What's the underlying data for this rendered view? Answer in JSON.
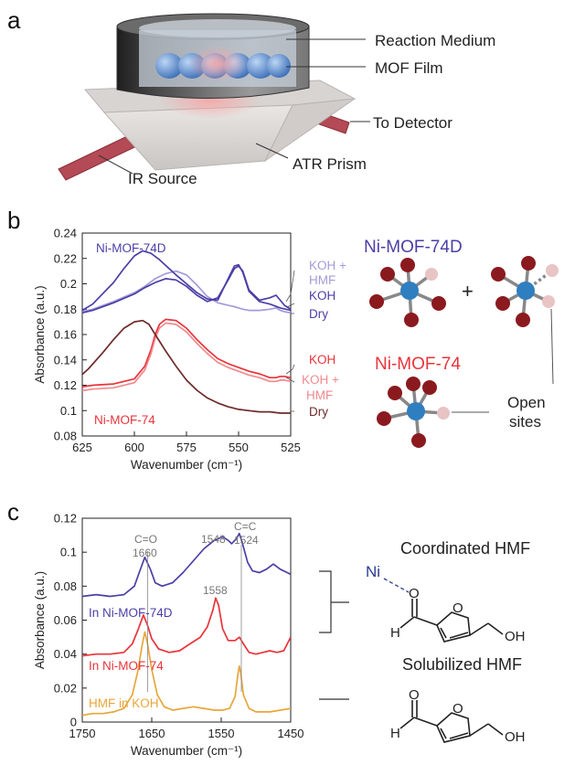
{
  "panel_a": {
    "letter": "a",
    "callouts": [
      "Reaction Medium",
      "MOF Film",
      "To Detector",
      "IR Source",
      "ATR Prism"
    ]
  },
  "panel_b": {
    "letter": "b",
    "struct_title_d": "Ni-MOF-74D",
    "struct_title": "Ni-MOF-74",
    "plus": "+",
    "open_sites": [
      "Open",
      "sites"
    ],
    "colors": {
      "blue": "#4b3fa6",
      "blue_light": "#a49bd8",
      "red": "#e8343a",
      "red_light": "#f08a8e",
      "dark": "#6e2a2a",
      "atom_center": "#2f7fc0",
      "atom_o": "#8b1a1f",
      "atom_open": "#e8c4c4"
    }
  },
  "panel_c": {
    "letter": "c",
    "mol_title_1": "Coordinated HMF",
    "mol_title_2": "Solubilized HMF",
    "ni_label": "Ni",
    "atoms": {
      "o": "O",
      "h": "H",
      "oh": "OH"
    }
  },
  "chart_data": [
    {
      "type": "line",
      "xlabel": "Wavenumber (cm⁻¹)",
      "ylabel": "Absorbance (a.u.)",
      "xlim": [
        625,
        525
      ],
      "ylim": [
        0.08,
        0.24
      ],
      "x_reversed": true,
      "xticks": [
        625,
        600,
        575,
        550,
        525
      ],
      "yticks": [
        0.08,
        0.1,
        0.12,
        0.14,
        0.16,
        0.18,
        0.2,
        0.22,
        0.24
      ],
      "ytick_labels": [
        "0.08",
        "0.1",
        "0.12",
        "0.14",
        "0.16",
        "0.18",
        "0.2",
        "0.22",
        "0.24"
      ],
      "group_labels": [
        "Ni-MOF-74D",
        "Ni-MOF-74"
      ],
      "series": [
        {
          "name": "KOH + HMF",
          "group": "Ni-MOF-74D",
          "color": "#a49bd8",
          "x": [
            628,
            620,
            610,
            600,
            595,
            590,
            585,
            580,
            575,
            570,
            565,
            560,
            555,
            552,
            550,
            548,
            545,
            540,
            535,
            532,
            530,
            528,
            525
          ],
          "y": [
            0.177,
            0.18,
            0.186,
            0.193,
            0.198,
            0.204,
            0.208,
            0.21,
            0.207,
            0.199,
            0.19,
            0.185,
            0.183,
            0.182,
            0.181,
            0.18,
            0.179,
            0.179,
            0.18,
            0.181,
            0.179,
            0.178,
            0.177
          ]
        },
        {
          "name": "KOH",
          "group": "Ni-MOF-74D",
          "color": "#4b3fa6",
          "x": [
            628,
            620,
            610,
            600,
            595,
            590,
            585,
            580,
            575,
            570,
            565,
            560,
            555,
            552,
            550,
            548,
            545,
            540,
            535,
            532,
            530,
            528,
            525
          ],
          "y": [
            0.176,
            0.179,
            0.185,
            0.192,
            0.197,
            0.201,
            0.204,
            0.203,
            0.198,
            0.191,
            0.186,
            0.189,
            0.203,
            0.212,
            0.214,
            0.21,
            0.195,
            0.187,
            0.189,
            0.191,
            0.187,
            0.183,
            0.18
          ]
        },
        {
          "name": "Dry",
          "group": "Ni-MOF-74D",
          "color": "#4b3fa6",
          "x": [
            628,
            620,
            610,
            605,
            600,
            596,
            592,
            588,
            584,
            580,
            575,
            570,
            565,
            560,
            555,
            552,
            550,
            548,
            545,
            540,
            535,
            530,
            525
          ],
          "y": [
            0.176,
            0.184,
            0.201,
            0.212,
            0.222,
            0.226,
            0.224,
            0.219,
            0.213,
            0.207,
            0.2,
            0.193,
            0.188,
            0.187,
            0.204,
            0.214,
            0.215,
            0.209,
            0.194,
            0.186,
            0.184,
            0.181,
            0.179
          ]
        },
        {
          "name": "KOH",
          "group": "Ni-MOF-74",
          "color": "#e8343a",
          "x": [
            628,
            620,
            610,
            600,
            595,
            592,
            590,
            588,
            585,
            580,
            575,
            570,
            565,
            560,
            555,
            550,
            545,
            540,
            535,
            532,
            530,
            528,
            525
          ],
          "y": [
            0.118,
            0.12,
            0.121,
            0.125,
            0.135,
            0.148,
            0.16,
            0.168,
            0.172,
            0.171,
            0.165,
            0.156,
            0.148,
            0.141,
            0.137,
            0.134,
            0.131,
            0.129,
            0.126,
            0.126,
            0.127,
            0.127,
            0.126
          ]
        },
        {
          "name": "KOH + HMF",
          "group": "Ni-MOF-74",
          "color": "#f08a8e",
          "x": [
            628,
            620,
            610,
            600,
            595,
            592,
            590,
            588,
            585,
            580,
            575,
            570,
            565,
            560,
            555,
            550,
            545,
            540,
            535,
            532,
            530,
            528,
            525
          ],
          "y": [
            0.115,
            0.117,
            0.118,
            0.122,
            0.132,
            0.145,
            0.157,
            0.165,
            0.169,
            0.168,
            0.162,
            0.153,
            0.145,
            0.138,
            0.134,
            0.131,
            0.128,
            0.126,
            0.123,
            0.123,
            0.124,
            0.124,
            0.123
          ]
        },
        {
          "name": "Dry",
          "group": "Ni-MOF-74",
          "color": "#6e2a2a",
          "x": [
            628,
            622,
            615,
            610,
            605,
            600,
            596,
            593,
            590,
            585,
            580,
            575,
            570,
            565,
            560,
            555,
            550,
            545,
            540,
            535,
            530,
            525
          ],
          "y": [
            0.124,
            0.133,
            0.146,
            0.156,
            0.165,
            0.17,
            0.171,
            0.168,
            0.16,
            0.147,
            0.135,
            0.124,
            0.116,
            0.11,
            0.106,
            0.103,
            0.101,
            0.1,
            0.099,
            0.099,
            0.098,
            0.098
          ]
        }
      ]
    },
    {
      "type": "line",
      "xlabel": "Wavenumber (cm⁻¹)",
      "ylabel": "Absorbance (a.u.)",
      "xlim": [
        1750,
        1450
      ],
      "ylim": [
        0,
        0.12
      ],
      "x_reversed": true,
      "xticks": [
        1750,
        1650,
        1550,
        1450
      ],
      "yticks": [
        0,
        0.02,
        0.04,
        0.06,
        0.08,
        0.1,
        0.12
      ],
      "ytick_labels": [
        "0",
        "0.02",
        "0.04",
        "0.06",
        "0.08",
        "0.1",
        "0.12"
      ],
      "annotations": [
        {
          "text": "C=O",
          "x": 1660
        },
        {
          "text": "1660",
          "x": 1660
        },
        {
          "text": "C=C",
          "x": 1524
        },
        {
          "text": "1524",
          "x": 1524
        },
        {
          "text": "1548",
          "x": 1548
        },
        {
          "text": "1558",
          "x": 1558
        }
      ],
      "series": [
        {
          "name": "In Ni-MOF-74D",
          "color": "#4b3fa6",
          "x": [
            1750,
            1730,
            1710,
            1690,
            1675,
            1668,
            1660,
            1652,
            1645,
            1635,
            1620,
            1605,
            1590,
            1575,
            1560,
            1548,
            1540,
            1535,
            1528,
            1524,
            1520,
            1512,
            1505,
            1495,
            1485,
            1475,
            1465,
            1455,
            1450
          ],
          "y": [
            0.074,
            0.075,
            0.074,
            0.075,
            0.08,
            0.088,
            0.097,
            0.09,
            0.082,
            0.08,
            0.082,
            0.088,
            0.095,
            0.102,
            0.107,
            0.109,
            0.107,
            0.105,
            0.108,
            0.111,
            0.106,
            0.094,
            0.089,
            0.088,
            0.09,
            0.093,
            0.09,
            0.088,
            0.087
          ]
        },
        {
          "name": "In Ni-MOF-74",
          "color": "#e8343a",
          "x": [
            1750,
            1730,
            1710,
            1690,
            1678,
            1670,
            1662,
            1656,
            1650,
            1640,
            1625,
            1610,
            1595,
            1580,
            1570,
            1562,
            1558,
            1554,
            1548,
            1540,
            1530,
            1524,
            1518,
            1510,
            1500,
            1490,
            1480,
            1470,
            1460,
            1450
          ],
          "y": [
            0.039,
            0.04,
            0.04,
            0.041,
            0.046,
            0.054,
            0.063,
            0.057,
            0.049,
            0.043,
            0.041,
            0.042,
            0.046,
            0.05,
            0.056,
            0.066,
            0.073,
            0.069,
            0.055,
            0.048,
            0.048,
            0.05,
            0.046,
            0.041,
            0.04,
            0.041,
            0.042,
            0.041,
            0.042,
            0.05
          ]
        },
        {
          "name": "HMF in KOH",
          "color": "#e8a63a",
          "x": [
            1750,
            1735,
            1720,
            1705,
            1690,
            1678,
            1670,
            1664,
            1660,
            1656,
            1650,
            1642,
            1632,
            1620,
            1605,
            1590,
            1575,
            1560,
            1548,
            1538,
            1530,
            1526,
            1524,
            1522,
            1518,
            1510,
            1500,
            1480,
            1465,
            1450
          ],
          "y": [
            0.004,
            0.005,
            0.005,
            0.006,
            0.008,
            0.016,
            0.03,
            0.045,
            0.053,
            0.046,
            0.031,
            0.016,
            0.009,
            0.007,
            0.008,
            0.009,
            0.008,
            0.007,
            0.007,
            0.008,
            0.015,
            0.028,
            0.033,
            0.029,
            0.016,
            0.008,
            0.006,
            0.006,
            0.007,
            0.008
          ]
        }
      ]
    }
  ]
}
